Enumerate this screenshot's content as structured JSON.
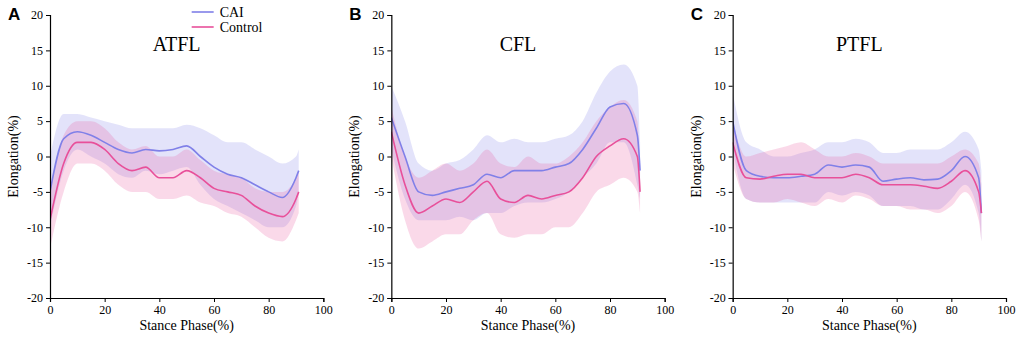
{
  "chart_data": [
    {
      "type": "line",
      "panel_label": "A",
      "title": "ATFL",
      "x_label": "Stance Phase(%)",
      "y_label": "Elongation(%)",
      "xlim": [
        0,
        100
      ],
      "xticks": [
        0,
        20,
        40,
        60,
        80,
        100
      ],
      "ylim": [
        -20,
        20
      ],
      "yticks": [
        -20,
        -15,
        -10,
        -5,
        0,
        5,
        10,
        15,
        20
      ],
      "legend": "top",
      "x": [
        0,
        5,
        10,
        15,
        20,
        25,
        30,
        35,
        40,
        45,
        50,
        55,
        60,
        65,
        70,
        75,
        80,
        85,
        90,
        91
      ],
      "series": [
        {
          "name": "CAI",
          "color": "#8080e8",
          "values": [
            -5,
            2.5,
            3.5,
            3,
            2,
            1,
            0.5,
            1,
            0.8,
            1,
            1.5,
            0,
            -1.5,
            -2.5,
            -3,
            -4,
            -5,
            -5.8,
            -3,
            -2
          ],
          "upper": [
            0,
            6,
            6,
            5.5,
            5,
            4.5,
            4,
            4,
            4,
            4,
            4.5,
            4,
            3,
            2,
            2,
            1,
            0,
            -1,
            0,
            1
          ],
          "lower": [
            -10,
            -2,
            1,
            0,
            -1,
            -2.5,
            -3,
            -2,
            -2.5,
            -2,
            -1.5,
            -4,
            -6,
            -7,
            -8,
            -9,
            -10,
            -10,
            -7,
            -5
          ]
        },
        {
          "name": "Control",
          "color": "#e8509a",
          "values": [
            -9,
            -1,
            2,
            2,
            1,
            -1,
            -2,
            -1.5,
            -3,
            -3,
            -2,
            -3,
            -4.5,
            -5,
            -5.5,
            -7,
            -8,
            -8.5,
            -6,
            -5
          ],
          "upper": [
            -5,
            3,
            5,
            5,
            4,
            2,
            1,
            1.5,
            0,
            0,
            1,
            -0.5,
            -2,
            -2.5,
            -3,
            -4.5,
            -5,
            -5,
            -3,
            -2
          ],
          "lower": [
            -13,
            -5,
            -1,
            -1,
            -2,
            -4,
            -5,
            -5,
            -6,
            -6,
            -5.5,
            -6.5,
            -7,
            -8,
            -8.5,
            -10,
            -11.5,
            -12,
            -9,
            -8
          ]
        }
      ]
    },
    {
      "type": "line",
      "panel_label": "B",
      "title": "CFL",
      "x_label": "Stance Phase(%)",
      "y_label": "Elongation(%)",
      "xlim": [
        0,
        100
      ],
      "xticks": [
        0,
        20,
        40,
        60,
        80,
        100
      ],
      "ylim": [
        -20,
        20
      ],
      "yticks": [
        -20,
        -15,
        -10,
        -5,
        0,
        5,
        10,
        15,
        20
      ],
      "x": [
        0,
        5,
        10,
        15,
        20,
        25,
        30,
        35,
        40,
        45,
        50,
        55,
        60,
        65,
        70,
        75,
        80,
        85,
        90,
        91
      ],
      "series": [
        {
          "color": "#8080e8",
          "values": [
            5.5,
            0,
            -5,
            -5.5,
            -5,
            -4.5,
            -4,
            -2.5,
            -3,
            -2,
            -2,
            -2,
            -1.5,
            -1,
            1,
            4,
            7,
            7.5,
            3,
            -2
          ],
          "upper": [
            10,
            5,
            -1,
            -2,
            -1,
            -0.5,
            1,
            3,
            2,
            2.5,
            2,
            2,
            2.5,
            3,
            5,
            9,
            12,
            13,
            10,
            2
          ],
          "lower": [
            1,
            -6,
            -9,
            -9,
            -9,
            -8.5,
            -9,
            -8,
            -8,
            -7,
            -6.5,
            -6.5,
            -6,
            -5,
            -3,
            -1,
            2,
            2,
            -4,
            -6
          ]
        },
        {
          "color": "#e8509a",
          "values": [
            3.5,
            -4,
            -8,
            -7,
            -6,
            -6.5,
            -5,
            -3.5,
            -6,
            -6.5,
            -5.5,
            -6,
            -5.5,
            -5,
            -3,
            0,
            1.5,
            2.5,
            0,
            -5
          ],
          "upper": [
            7,
            0,
            -3,
            -2,
            -1,
            -2,
            -1,
            1,
            -1,
            -1.5,
            0,
            -1,
            -1,
            0,
            2,
            5,
            7,
            8,
            5,
            -2
          ],
          "lower": [
            0,
            -9,
            -13,
            -12,
            -11,
            -11,
            -9,
            -8,
            -11,
            -11.5,
            -11,
            -11,
            -10,
            -10,
            -8,
            -5,
            -4,
            -3,
            -5,
            -8
          ]
        }
      ]
    },
    {
      "type": "line",
      "panel_label": "C",
      "title": "PTFL",
      "x_label": "Stance Phase(%)",
      "y_label": "Elongation(%)",
      "xlim": [
        0,
        100
      ],
      "xticks": [
        0,
        20,
        40,
        60,
        80,
        100
      ],
      "ylim": [
        -20,
        20
      ],
      "yticks": [
        -20,
        -15,
        -10,
        -5,
        0,
        5,
        10,
        15,
        20
      ],
      "x": [
        0,
        5,
        10,
        15,
        20,
        25,
        30,
        35,
        40,
        45,
        50,
        55,
        60,
        65,
        70,
        75,
        80,
        85,
        90,
        91
      ],
      "series": [
        {
          "color": "#8080e8",
          "values": [
            5,
            -2,
            -2.8,
            -3,
            -3,
            -2.8,
            -2.5,
            -1.2,
            -1.5,
            -1.2,
            -1.5,
            -3.5,
            -3.2,
            -3,
            -3.3,
            -3.2,
            -2,
            0,
            -3,
            -8
          ],
          "upper": [
            9,
            2,
            1,
            0,
            0,
            0.5,
            1,
            2,
            2,
            2.5,
            2,
            0.5,
            0.5,
            1,
            1,
            1,
            2,
            3.5,
            1,
            -2
          ],
          "lower": [
            1,
            -6,
            -6.5,
            -6.5,
            -6.5,
            -6.5,
            -6.5,
            -5,
            -5.5,
            -5,
            -5.5,
            -7,
            -7,
            -7,
            -7.5,
            -7.5,
            -6,
            -4,
            -8,
            -12
          ]
        },
        {
          "color": "#e8509a",
          "values": [
            2,
            -3,
            -3.2,
            -2.8,
            -2.5,
            -2.5,
            -3,
            -3,
            -3,
            -2.5,
            -3,
            -4,
            -4,
            -4,
            -4.2,
            -4.5,
            -3.5,
            -2,
            -5,
            -8
          ],
          "upper": [
            5,
            0,
            0.5,
            1,
            1.5,
            2,
            1,
            0,
            0,
            0.5,
            0,
            -1,
            -1,
            -1,
            -1,
            -1,
            0,
            1,
            -1,
            -4
          ],
          "lower": [
            -1,
            -6,
            -6.5,
            -6.5,
            -6,
            -6.5,
            -7,
            -6,
            -6.5,
            -5.5,
            -6,
            -7,
            -7,
            -7.5,
            -7.5,
            -8,
            -7,
            -5,
            -9,
            -12
          ]
        }
      ]
    }
  ]
}
